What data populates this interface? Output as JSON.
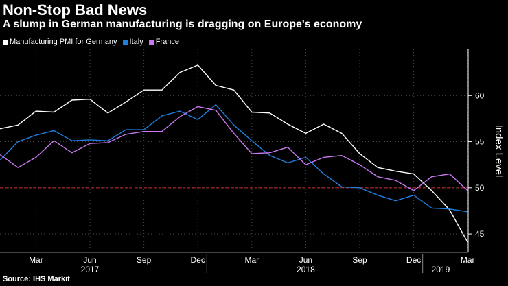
{
  "chart_data": {
    "type": "line",
    "title": "Non-Stop Bad News",
    "subtitle": "A slump in German manufacturing is dragging on Europe's economy",
    "ylabel": "Index Level",
    "ylim": [
      43,
      65
    ],
    "yticks": [
      45,
      50,
      55,
      60
    ],
    "reference_line": 50,
    "x_months": [
      "Jan 2017",
      "Feb 2017",
      "Mar 2017",
      "Apr 2017",
      "May 2017",
      "Jun 2017",
      "Jul 2017",
      "Aug 2017",
      "Sep 2017",
      "Oct 2017",
      "Nov 2017",
      "Dec 2017",
      "Jan 2018",
      "Feb 2018",
      "Mar 2018",
      "Apr 2018",
      "May 2018",
      "Jun 2018",
      "Jul 2018",
      "Aug 2018",
      "Sep 2018",
      "Oct 2018",
      "Nov 2018",
      "Dec 2018",
      "Jan 2019",
      "Feb 2019",
      "Mar 2019"
    ],
    "x_tick_labels": [
      {
        "index": 2,
        "label": "Mar"
      },
      {
        "index": 5,
        "label": "Jun"
      },
      {
        "index": 8,
        "label": "Sep"
      },
      {
        "index": 11,
        "label": "Dec"
      },
      {
        "index": 14,
        "label": "Mar"
      },
      {
        "index": 17,
        "label": "Jun"
      },
      {
        "index": 20,
        "label": "Sep"
      },
      {
        "index": 23,
        "label": "Dec"
      },
      {
        "index": 26,
        "label": "Mar"
      }
    ],
    "year_labels": [
      {
        "index": 5,
        "label": "2017"
      },
      {
        "index": 17,
        "label": "2018"
      },
      {
        "index": 24.5,
        "label": "2019"
      }
    ],
    "year_separators": [
      11.5,
      23.5
    ],
    "series": [
      {
        "name": "Manufacturing PMI for Germany",
        "color": "#ffffff",
        "values": [
          56.4,
          56.8,
          58.3,
          58.2,
          59.5,
          59.6,
          58.1,
          59.3,
          60.6,
          60.6,
          62.5,
          63.3,
          61.1,
          60.6,
          58.2,
          58.1,
          56.9,
          55.9,
          56.9,
          55.9,
          53.7,
          52.2,
          51.8,
          51.5,
          49.7,
          47.6,
          44.1
        ]
      },
      {
        "name": "Italy",
        "color": "#1f7fe0",
        "values": [
          53.0,
          55.0,
          55.7,
          56.2,
          55.1,
          55.2,
          55.1,
          56.3,
          56.3,
          57.8,
          58.3,
          57.4,
          59.0,
          56.8,
          55.1,
          53.5,
          52.7,
          53.3,
          51.5,
          50.1,
          50.0,
          49.2,
          48.6,
          49.2,
          47.8,
          47.7,
          47.4
        ]
      },
      {
        "name": "France",
        "color": "#c979f0",
        "values": [
          53.6,
          52.2,
          53.3,
          55.1,
          53.8,
          54.8,
          54.9,
          55.8,
          56.1,
          56.1,
          57.7,
          58.8,
          58.4,
          55.9,
          53.7,
          53.8,
          54.4,
          52.5,
          53.3,
          53.5,
          52.5,
          51.2,
          50.8,
          49.7,
          51.2,
          51.5,
          49.7
        ]
      }
    ],
    "source": "Source: IHS Markit"
  },
  "colors": {
    "background": "#000000",
    "grid": "#4a4a4a",
    "reference": "#c0262d",
    "text": "#ffffff"
  }
}
